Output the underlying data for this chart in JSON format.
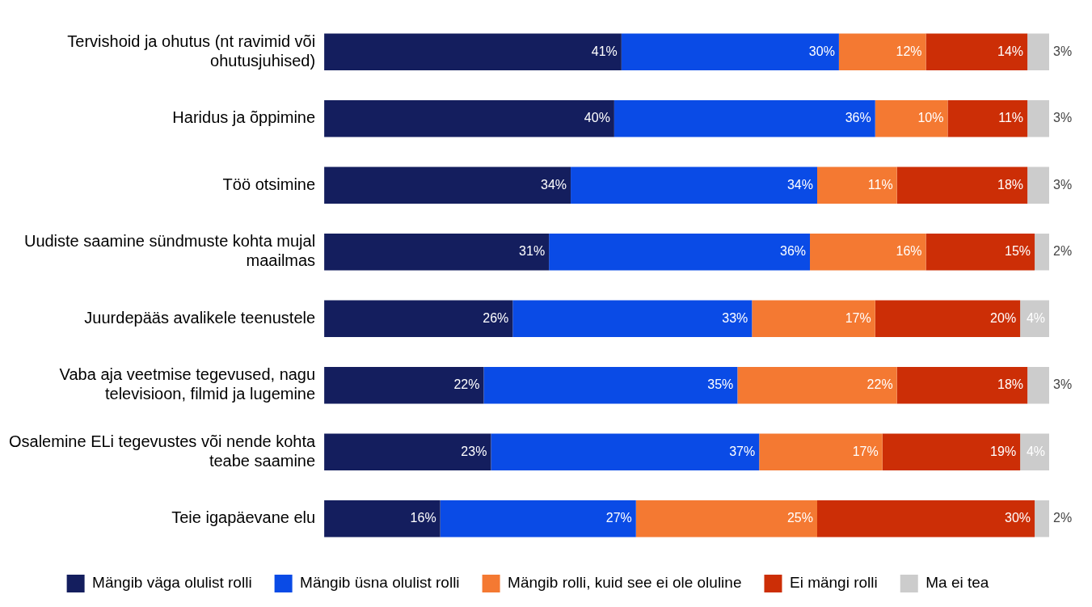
{
  "chart_data": {
    "type": "bar",
    "orientation": "horizontal",
    "stacked": true,
    "legend": "bottom",
    "categories": [
      "Tervishoid ja ohutus (nt ravimid või ohutusjuhised)",
      "Haridus ja õppimine",
      "Töö otsimine",
      "Uudiste saamine sündmuste kohta mujal maailmas",
      "Juurdepääs avalikele teenustele",
      "Vaba aja veetmise tegevused, nagu televisioon, filmid ja lugemine",
      "Osalemine ELi tegevustes või nende kohta teabe saamine",
      "Teie igapäevane elu"
    ],
    "series": [
      {
        "name": "Mängib väga olulist rolli",
        "color": "#141e5e",
        "values": [
          41,
          40,
          34,
          31,
          26,
          22,
          23,
          16
        ],
        "value_labels": [
          "41%",
          "40%",
          "34%",
          "31%",
          "26%",
          "22%",
          "23%",
          "16%"
        ]
      },
      {
        "name": "Mängib üsna olulist rolli",
        "color": "#0a4be6",
        "values": [
          30,
          36,
          34,
          36,
          33,
          35,
          37,
          27
        ],
        "value_labels": [
          "30%",
          "36%",
          "34%",
          "36%",
          "33%",
          "35%",
          "37%",
          "27%"
        ]
      },
      {
        "name": "Mängib rolli, kuid see ei ole oluline",
        "color": "#f47932",
        "values": [
          12,
          10,
          11,
          16,
          17,
          22,
          17,
          25
        ],
        "value_labels": [
          "12%",
          "10%",
          "11%",
          "16%",
          "17%",
          "22%",
          "17%",
          "25%"
        ]
      },
      {
        "name": "Ei mängi rolli",
        "color": "#cc2e06",
        "values": [
          14,
          11,
          18,
          15,
          20,
          18,
          19,
          30
        ],
        "value_labels": [
          "14%",
          "11%",
          "18%",
          "15%",
          "20%",
          "18%",
          "19%",
          "30%"
        ]
      },
      {
        "name": "Ma ei tea",
        "color": "#cccccc",
        "values": [
          3,
          3,
          3,
          2,
          4,
          3,
          4,
          2
        ],
        "value_labels": [
          "3%",
          "3%",
          "3%",
          "2%",
          "4%",
          "3%",
          "4%",
          "2%"
        ]
      }
    ]
  }
}
